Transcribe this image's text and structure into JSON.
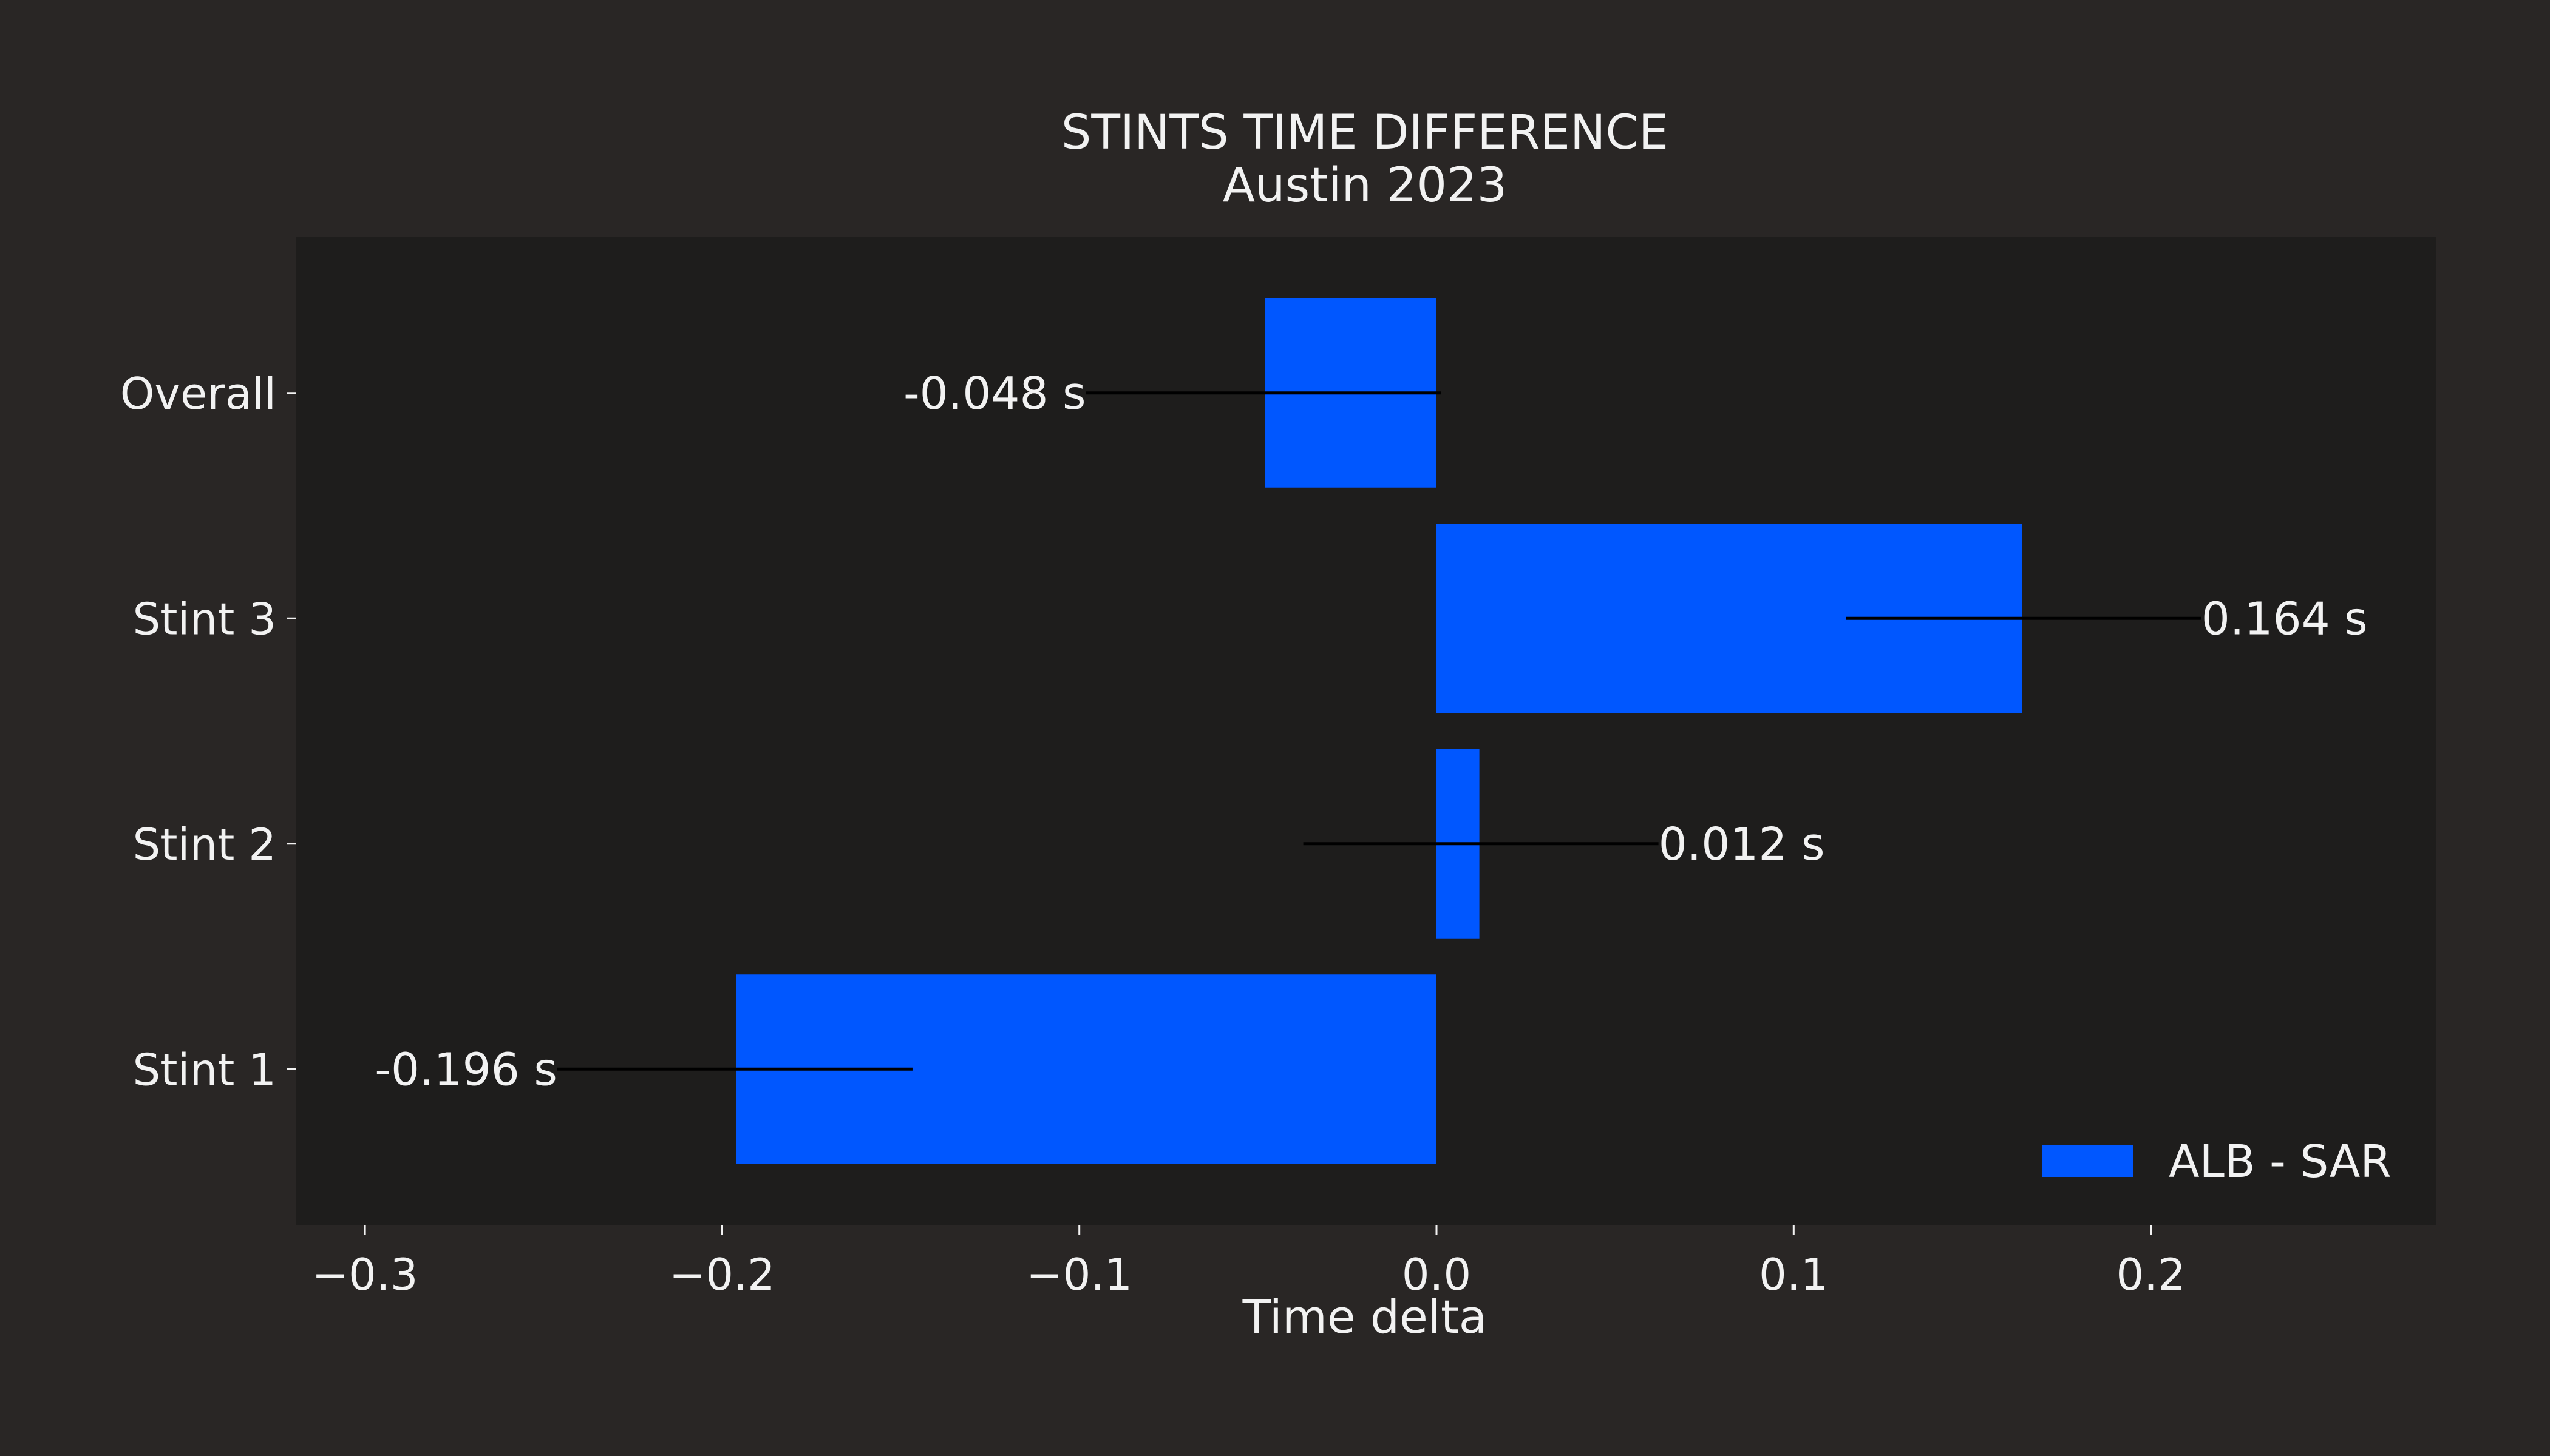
{
  "chart_data": {
    "type": "bar",
    "orientation": "horizontal",
    "title": "STINTS TIME DIFFERENCE",
    "subtitle": "Austin 2023",
    "xlabel": "Time delta",
    "ylabel": "",
    "categories": [
      "Stint 1",
      "Stint 2",
      "Stint 3",
      "Overall"
    ],
    "series": [
      {
        "name": "ALB - SAR",
        "values": [
          -0.196,
          0.012,
          0.164,
          -0.048
        ],
        "labels": [
          "-0.196 s",
          "0.012 s",
          "0.164 s",
          "-0.048 s"
        ],
        "color": "#0057ff"
      }
    ],
    "xlim": [
      -0.32,
      0.28
    ],
    "xticks": [
      -0.3,
      -0.2,
      -0.1,
      0.0,
      0.1,
      0.2
    ],
    "xtick_labels": [
      "−0.3",
      "−0.2",
      "−0.1",
      "0.0",
      "0.1",
      "0.2"
    ],
    "grid": false,
    "legend": "bottom-right",
    "colors": {
      "figure_background": "#292625",
      "plot_background": "#1e1d1c",
      "text": "#f2f2f2",
      "annotation_line": "#000000"
    }
  }
}
